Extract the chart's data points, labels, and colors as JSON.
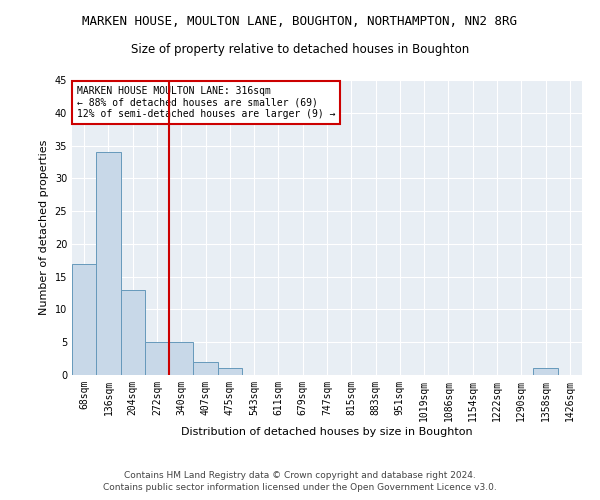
{
  "title": "MARKEN HOUSE, MOULTON LANE, BOUGHTON, NORTHAMPTON, NN2 8RG",
  "subtitle": "Size of property relative to detached houses in Boughton",
  "xlabel": "Distribution of detached houses by size in Boughton",
  "ylabel": "Number of detached properties",
  "bar_values": [
    17,
    34,
    13,
    5,
    5,
    2,
    1,
    0,
    0,
    0,
    0,
    0,
    0,
    0,
    0,
    0,
    0,
    0,
    0,
    1,
    0
  ],
  "bar_labels": [
    "68sqm",
    "136sqm",
    "204sqm",
    "272sqm",
    "340sqm",
    "407sqm",
    "475sqm",
    "543sqm",
    "611sqm",
    "679sqm",
    "747sqm",
    "815sqm",
    "883sqm",
    "951sqm",
    "1019sqm",
    "1086sqm",
    "1154sqm",
    "1222sqm",
    "1290sqm",
    "1358sqm",
    "1426sqm"
  ],
  "bar_color": "#c8d8e8",
  "bar_edge_color": "#6699bb",
  "bg_color": "#e8eef4",
  "grid_color": "#ffffff",
  "red_line_color": "#cc0000",
  "annotation_box_text": "MARKEN HOUSE MOULTON LANE: 316sqm\n← 88% of detached houses are smaller (69)\n12% of semi-detached houses are larger (9) →",
  "annotation_box_color": "#cc0000",
  "ylim": [
    0,
    45
  ],
  "yticks": [
    0,
    5,
    10,
    15,
    20,
    25,
    30,
    35,
    40,
    45
  ],
  "footer_line1": "Contains HM Land Registry data © Crown copyright and database right 2024.",
  "footer_line2": "Contains public sector information licensed under the Open Government Licence v3.0.",
  "title_fontsize": 9,
  "subtitle_fontsize": 8.5,
  "axis_label_fontsize": 8,
  "tick_fontsize": 7,
  "annotation_fontsize": 7,
  "footer_fontsize": 6.5
}
